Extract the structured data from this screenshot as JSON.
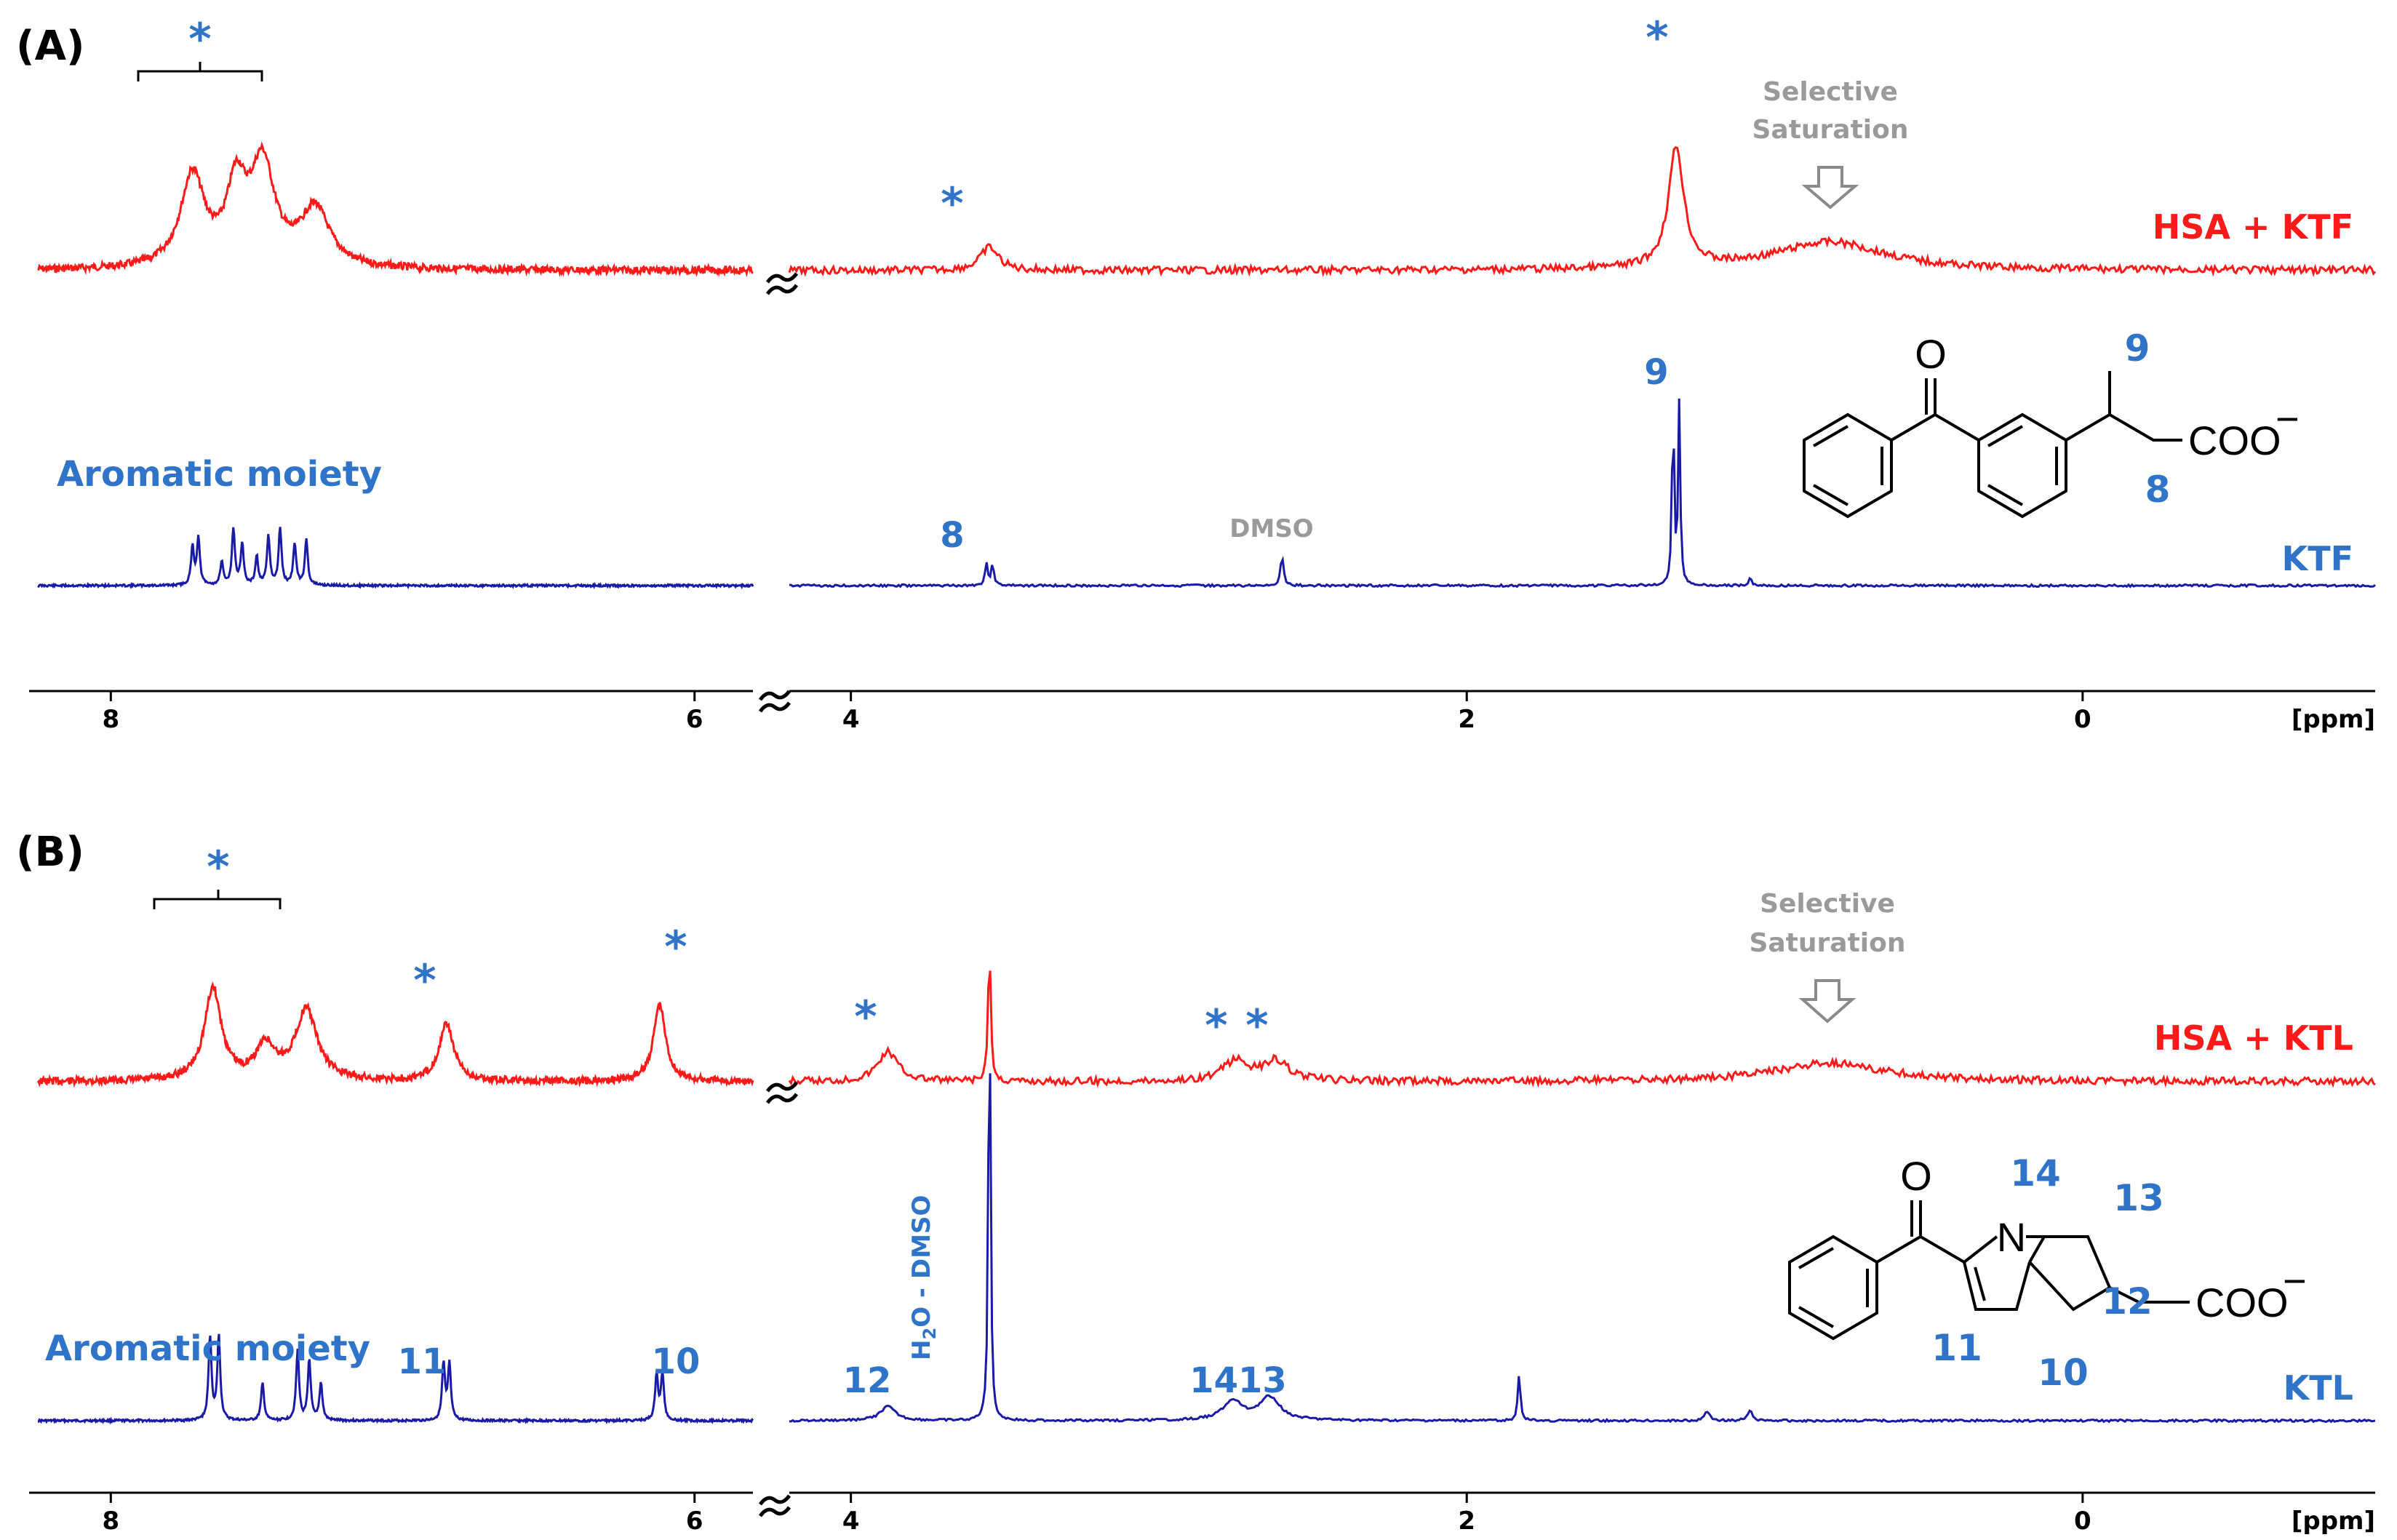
{
  "chart_data": [
    {
      "type": "line",
      "panel_label": "(A)",
      "x_unit": "[ppm]",
      "x_ticks": [
        8,
        6,
        4,
        2,
        0
      ],
      "x_axis_reversed": true,
      "x_axis_break": [
        4.2,
        5.8
      ],
      "series": [
        {
          "name": "HSA + KTF",
          "color": "#ff1a1a",
          "baseline": 0.22,
          "peaks": [
            {
              "x": 7.72,
              "h": 0.55,
              "w": 0.05
            },
            {
              "x": 7.57,
              "h": 0.45,
              "w": 0.04
            },
            {
              "x": 7.48,
              "h": 0.6,
              "w": 0.05
            },
            {
              "x": 7.3,
              "h": 0.35,
              "w": 0.06
            },
            {
              "x": 3.55,
              "h": 0.14,
              "w": 0.035
            },
            {
              "x": 1.32,
              "h": 0.72,
              "w": 0.03
            },
            {
              "x": 0.82,
              "h": 0.17,
              "w": 0.22
            }
          ]
        },
        {
          "name": "KTF",
          "color": "#1a1aa8",
          "baseline": 0.02,
          "peaks": [
            {
              "x": 7.72,
              "h": 0.2,
              "w": 0.006
            },
            {
              "x": 7.7,
              "h": 0.25,
              "w": 0.006
            },
            {
              "x": 7.62,
              "h": 0.12,
              "w": 0.006
            },
            {
              "x": 7.58,
              "h": 0.3,
              "w": 0.006
            },
            {
              "x": 7.55,
              "h": 0.22,
              "w": 0.006
            },
            {
              "x": 7.5,
              "h": 0.15,
              "w": 0.006
            },
            {
              "x": 7.46,
              "h": 0.26,
              "w": 0.006
            },
            {
              "x": 7.42,
              "h": 0.3,
              "w": 0.006
            },
            {
              "x": 7.37,
              "h": 0.22,
              "w": 0.006
            },
            {
              "x": 7.33,
              "h": 0.24,
              "w": 0.006
            },
            {
              "x": 3.56,
              "h": 0.12,
              "w": 0.005
            },
            {
              "x": 3.54,
              "h": 0.12,
              "w": 0.005
            },
            {
              "x": 2.6,
              "h": 0.16,
              "w": 0.006
            },
            {
              "x": 1.33,
              "h": 0.95,
              "w": 0.004
            },
            {
              "x": 1.31,
              "h": 0.95,
              "w": 0.004
            },
            {
              "x": 1.08,
              "h": 0.04,
              "w": 0.006
            }
          ]
        }
      ],
      "annotations": {
        "stars": "*",
        "selective_line1": "Selective",
        "selective_line2": "Saturation",
        "aromatic": "Aromatic moiety",
        "dmso": "DMSO",
        "peak8": "8",
        "peak9": "9"
      },
      "molecule": {
        "carbonyl_o": "O",
        "acid": "COO",
        "charge": "−",
        "num8": "8",
        "num9": "9"
      }
    },
    {
      "type": "line",
      "panel_label": "(B)",
      "x_unit": "[ppm]",
      "x_ticks": [
        8,
        6,
        4,
        2,
        0
      ],
      "x_axis_reversed": true,
      "x_axis_break": [
        4.2,
        5.8
      ],
      "series": [
        {
          "name": "HSA + KTL",
          "color": "#ff1a1a",
          "baseline": 0.22,
          "peaks": [
            {
              "x": 7.65,
              "h": 0.55,
              "w": 0.035
            },
            {
              "x": 7.47,
              "h": 0.2,
              "w": 0.04
            },
            {
              "x": 7.33,
              "h": 0.42,
              "w": 0.045
            },
            {
              "x": 6.85,
              "h": 0.34,
              "w": 0.03
            },
            {
              "x": 6.12,
              "h": 0.46,
              "w": 0.025
            },
            {
              "x": 3.88,
              "h": 0.18,
              "w": 0.04
            },
            {
              "x": 3.55,
              "h": 0.82,
              "w": 0.005
            },
            {
              "x": 2.75,
              "h": 0.12,
              "w": 0.05
            },
            {
              "x": 2.62,
              "h": 0.12,
              "w": 0.05
            },
            {
              "x": 0.82,
              "h": 0.11,
              "w": 0.22
            }
          ]
        },
        {
          "name": "KTL",
          "color": "#1a1aa8",
          "baseline": 0.02,
          "peaks": [
            {
              "x": 7.66,
              "h": 0.18,
              "w": 0.006
            },
            {
              "x": 7.63,
              "h": 0.18,
              "w": 0.006
            },
            {
              "x": 7.48,
              "h": 0.08,
              "w": 0.006
            },
            {
              "x": 7.36,
              "h": 0.15,
              "w": 0.006
            },
            {
              "x": 7.32,
              "h": 0.13,
              "w": 0.006
            },
            {
              "x": 7.28,
              "h": 0.08,
              "w": 0.006
            },
            {
              "x": 6.86,
              "h": 0.12,
              "w": 0.006
            },
            {
              "x": 6.84,
              "h": 0.12,
              "w": 0.006
            },
            {
              "x": 6.13,
              "h": 0.1,
              "w": 0.006
            },
            {
              "x": 6.11,
              "h": 0.1,
              "w": 0.006
            },
            {
              "x": 3.88,
              "h": 0.03,
              "w": 0.03
            },
            {
              "x": 3.55,
              "h": 1.0,
              "w": 0.004
            },
            {
              "x": 2.76,
              "h": 0.04,
              "w": 0.04
            },
            {
              "x": 2.64,
              "h": 0.05,
              "w": 0.04
            },
            {
              "x": 1.83,
              "h": 0.1,
              "w": 0.005
            },
            {
              "x": 1.22,
              "h": 0.02,
              "w": 0.01
            },
            {
              "x": 1.08,
              "h": 0.02,
              "w": 0.01
            }
          ]
        }
      ],
      "annotations": {
        "stars": "*",
        "selective_line1": "Selective",
        "selective_line2": "Saturation",
        "aromatic": "Aromatic moiety",
        "solvent_h": "H",
        "solvent_sub": "2",
        "solvent_rest": "O - DMSO",
        "peak10": "10",
        "peak11": "11",
        "peak12": "12",
        "peak1413": "1413"
      },
      "molecule": {
        "carbonyl_o": "O",
        "nitrogen": "N",
        "acid": "COO",
        "charge": "−",
        "num10": "10",
        "num11": "11",
        "num12": "12",
        "num13": "13",
        "num14": "14"
      }
    }
  ]
}
